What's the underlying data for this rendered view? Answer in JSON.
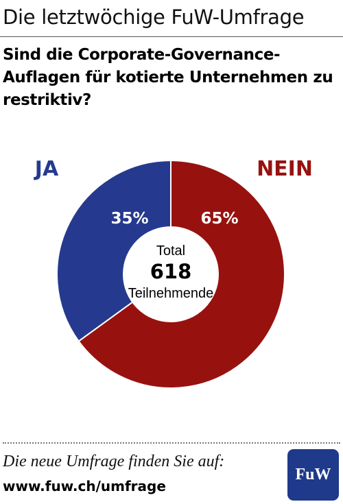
{
  "header": {
    "title": "Die letztwöchige FuW-Umfrage"
  },
  "question": "Sind die Corporate-Governance-Auflagen für kotierte Unternehmen zu restriktiv?",
  "center_label": {
    "line1": "Total",
    "value": "618",
    "line2": "Teilnehmende"
  },
  "footer": {
    "text": "Die neue Umfrage finden Sie auf:",
    "url": "www.fuw.ch/umfrage"
  },
  "logo": {
    "text": "FuW",
    "color": "#1f3a8a"
  },
  "chart_data": {
    "type": "pie",
    "title": "",
    "total": 618,
    "slices": [
      {
        "name": "JA",
        "value": 35,
        "label": "35%",
        "color": "#253a8e"
      },
      {
        "name": "NEIN",
        "value": 65,
        "label": "65%",
        "color": "#97120f"
      }
    ]
  }
}
